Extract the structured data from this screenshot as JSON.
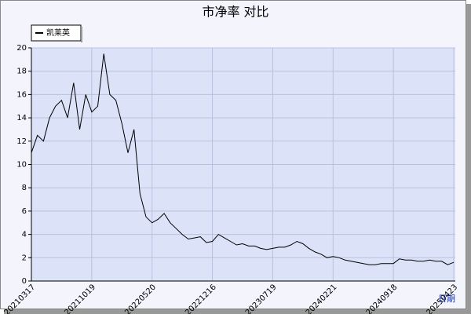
{
  "chart_data": {
    "type": "line",
    "title": "市净率  对比",
    "x_label": "日期",
    "categories": [
      "20210317",
      null,
      null,
      null,
      null,
      null,
      null,
      null,
      null,
      null,
      "20211019",
      null,
      null,
      null,
      null,
      null,
      null,
      null,
      null,
      null,
      "20220520",
      null,
      null,
      null,
      null,
      null,
      null,
      null,
      null,
      null,
      "20221216",
      null,
      null,
      null,
      null,
      null,
      null,
      null,
      null,
      null,
      "20230719",
      null,
      null,
      null,
      null,
      null,
      null,
      null,
      null,
      null,
      "20240221",
      null,
      null,
      null,
      null,
      null,
      null,
      null,
      null,
      null,
      "20240918",
      null,
      null,
      null,
      null,
      null,
      null,
      null,
      null,
      null,
      "20250423"
    ],
    "series": [
      {
        "name": "凯莱英",
        "color": "#000000",
        "values": [
          11,
          12.5,
          12,
          14,
          15,
          15.5,
          14,
          17,
          13,
          16,
          14.5,
          15,
          19.5,
          16,
          15.5,
          13.5,
          11,
          13,
          7.5,
          5.5,
          5,
          5.3,
          5.8,
          5,
          4.5,
          4,
          3.6,
          3.7,
          3.8,
          3.3,
          3.4,
          4,
          3.7,
          3.4,
          3.1,
          3.2,
          3.0,
          3.0,
          2.8,
          2.7,
          2.8,
          2.9,
          2.9,
          3.1,
          3.4,
          3.2,
          2.8,
          2.5,
          2.3,
          2.0,
          2.1,
          2.0,
          1.8,
          1.7,
          1.6,
          1.5,
          1.4,
          1.4,
          1.5,
          1.5,
          1.5,
          1.9,
          1.8,
          1.8,
          1.7,
          1.7,
          1.8,
          1.7,
          1.7,
          1.4,
          1.6
        ]
      }
    ],
    "ylim": [
      0,
      20
    ],
    "yticks": [
      0,
      2,
      4,
      6,
      8,
      10,
      12,
      14,
      16,
      18,
      20
    ],
    "grid": true,
    "legend": "top-left"
  }
}
